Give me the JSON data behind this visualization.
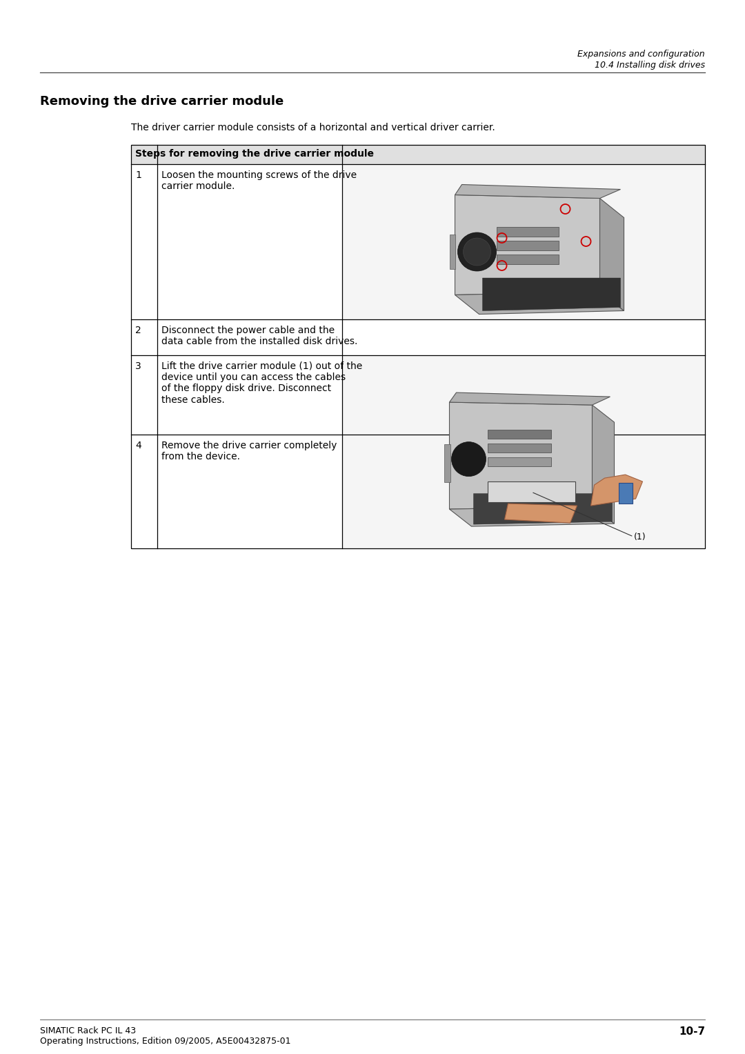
{
  "page_title_right1": "Expansions and configuration",
  "page_title_right2": "10.4 Installing disk drives",
  "section_title": "Removing the drive carrier module",
  "intro_text": "The driver carrier module consists of a horizontal and vertical driver carrier.",
  "table_header": "Steps for removing the drive carrier module",
  "steps": [
    {
      "num": "1",
      "text": "Loosen the mounting screws of the drive\ncarrier module."
    },
    {
      "num": "2",
      "text": "Disconnect the power cable and the\ndata cable from the installed disk drives."
    },
    {
      "num": "3",
      "text": "Lift the drive carrier module (1) out of the\ndevice until you can access the cables\nof the floppy disk drive. Disconnect\nthese cables."
    },
    {
      "num": "4",
      "text": "Remove the drive carrier completely\nfrom the device."
    }
  ],
  "footer_left1": "SIMATIC Rack PC IL 43",
  "footer_left2": "Operating Instructions, Edition 09/2005, A5E00432875-01",
  "footer_right": "10-7",
  "bg_color": "#ffffff",
  "table_border_color": "#000000",
  "text_color": "#000000"
}
